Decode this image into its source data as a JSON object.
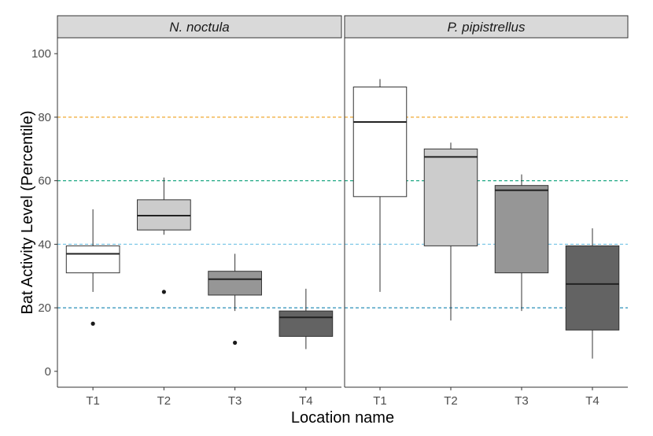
{
  "chart_data": {
    "type": "boxplot",
    "xlabel": "Location name",
    "ylabel": "Bat Activity Level (Percentile)",
    "ylim": [
      -5,
      105
    ],
    "y_ticks": [
      0,
      20,
      40,
      60,
      80,
      100
    ],
    "categories": [
      "T1",
      "T2",
      "T3",
      "T4"
    ],
    "box_colors": [
      "#ffffff",
      "#cccccc",
      "#969696",
      "#636363"
    ],
    "reference_lines": [
      {
        "y": 20,
        "color": "#2a8fb8"
      },
      {
        "y": 40,
        "color": "#7fc8e8"
      },
      {
        "y": 60,
        "color": "#1fa884"
      },
      {
        "y": 80,
        "color": "#f0a830"
      }
    ],
    "panels": [
      {
        "title": "N. noctula",
        "boxes": [
          {
            "category": "T1",
            "whisker_low": 25,
            "q1": 31,
            "median": 37,
            "q3": 39.5,
            "whisker_high": 51,
            "outliers": [
              15
            ]
          },
          {
            "category": "T2",
            "whisker_low": 43,
            "q1": 44.5,
            "median": 49,
            "q3": 54,
            "whisker_high": 61,
            "outliers": [
              25
            ]
          },
          {
            "category": "T3",
            "whisker_low": 19,
            "q1": 24,
            "median": 29,
            "q3": 31.5,
            "whisker_high": 37,
            "outliers": [
              9
            ]
          },
          {
            "category": "T4",
            "whisker_low": 7,
            "q1": 11,
            "median": 17,
            "q3": 19,
            "whisker_high": 26,
            "outliers": []
          }
        ]
      },
      {
        "title": "P. pipistrellus",
        "boxes": [
          {
            "category": "T1",
            "whisker_low": 25,
            "q1": 55,
            "median": 78.5,
            "q3": 89.5,
            "whisker_high": 92,
            "outliers": []
          },
          {
            "category": "T2",
            "whisker_low": 16,
            "q1": 39.5,
            "median": 67.5,
            "q3": 70,
            "whisker_high": 72,
            "outliers": []
          },
          {
            "category": "T3",
            "whisker_low": 19,
            "q1": 31,
            "median": 57,
            "q3": 58.5,
            "whisker_high": 62,
            "outliers": []
          },
          {
            "category": "T4",
            "whisker_low": 4,
            "q1": 13,
            "median": 27.5,
            "q3": 39.5,
            "whisker_high": 45,
            "outliers": []
          }
        ]
      }
    ]
  }
}
